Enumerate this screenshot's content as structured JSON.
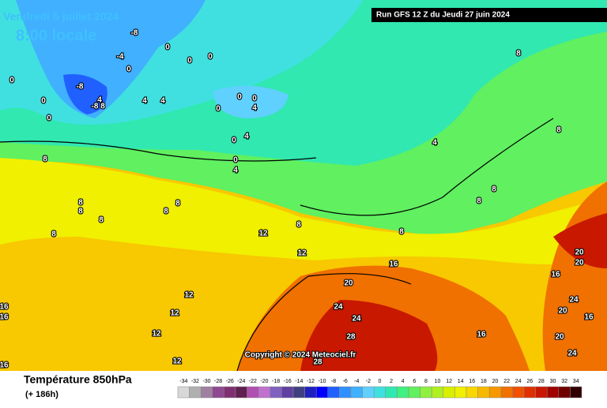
{
  "header": {
    "date": "Vendredi 5 juillet 2024",
    "time": "8:00 locale",
    "run": "Run GFS 12 Z du Jeudi 27 juin 2024"
  },
  "footer": {
    "title": "Température 850hPa",
    "lead": "(+ 186h)",
    "copyright": "Copyright © 2024 Meteociel.fr"
  },
  "legend": {
    "values": [
      -34,
      -32,
      -30,
      -28,
      -26,
      -24,
      -22,
      -20,
      -18,
      -16,
      -14,
      -12,
      -10,
      -8,
      -6,
      -4,
      -2,
      0,
      2,
      4,
      6,
      8,
      10,
      12,
      14,
      16,
      18,
      20,
      22,
      24,
      26,
      28,
      30,
      32,
      34
    ],
    "colors": [
      "#d8d8d8",
      "#b0b0b0",
      "#a080a0",
      "#904890",
      "#803070",
      "#602050",
      "#b050b0",
      "#c070d0",
      "#8060c0",
      "#6040a0",
      "#404080",
      "#2020c0",
      "#0000ff",
      "#2060ff",
      "#3090ff",
      "#40b0ff",
      "#60d0ff",
      "#40e0e0",
      "#30e8b0",
      "#40f080",
      "#60f060",
      "#90f040",
      "#b0f020",
      "#d8f000",
      "#f0f000",
      "#f8d800",
      "#f8b800",
      "#f89800",
      "#f07000",
      "#f05000",
      "#e03000",
      "#c81800",
      "#a00000",
      "#700000",
      "#300000"
    ]
  },
  "map_labels": [
    -8,
    0,
    -4,
    0,
    0,
    0,
    -8,
    4,
    -8,
    8,
    4,
    4,
    0,
    0,
    0,
    0,
    0,
    0,
    4,
    4,
    0,
    4,
    0,
    8,
    4,
    8,
    8,
    8,
    8,
    8,
    8,
    8,
    8,
    8,
    8,
    8,
    8,
    12,
    12,
    12,
    12,
    12,
    12,
    16,
    16,
    16,
    16,
    16,
    16,
    20,
    20,
    20,
    20,
    20,
    24,
    24,
    24,
    24,
    28,
    28,
    16
  ]
}
